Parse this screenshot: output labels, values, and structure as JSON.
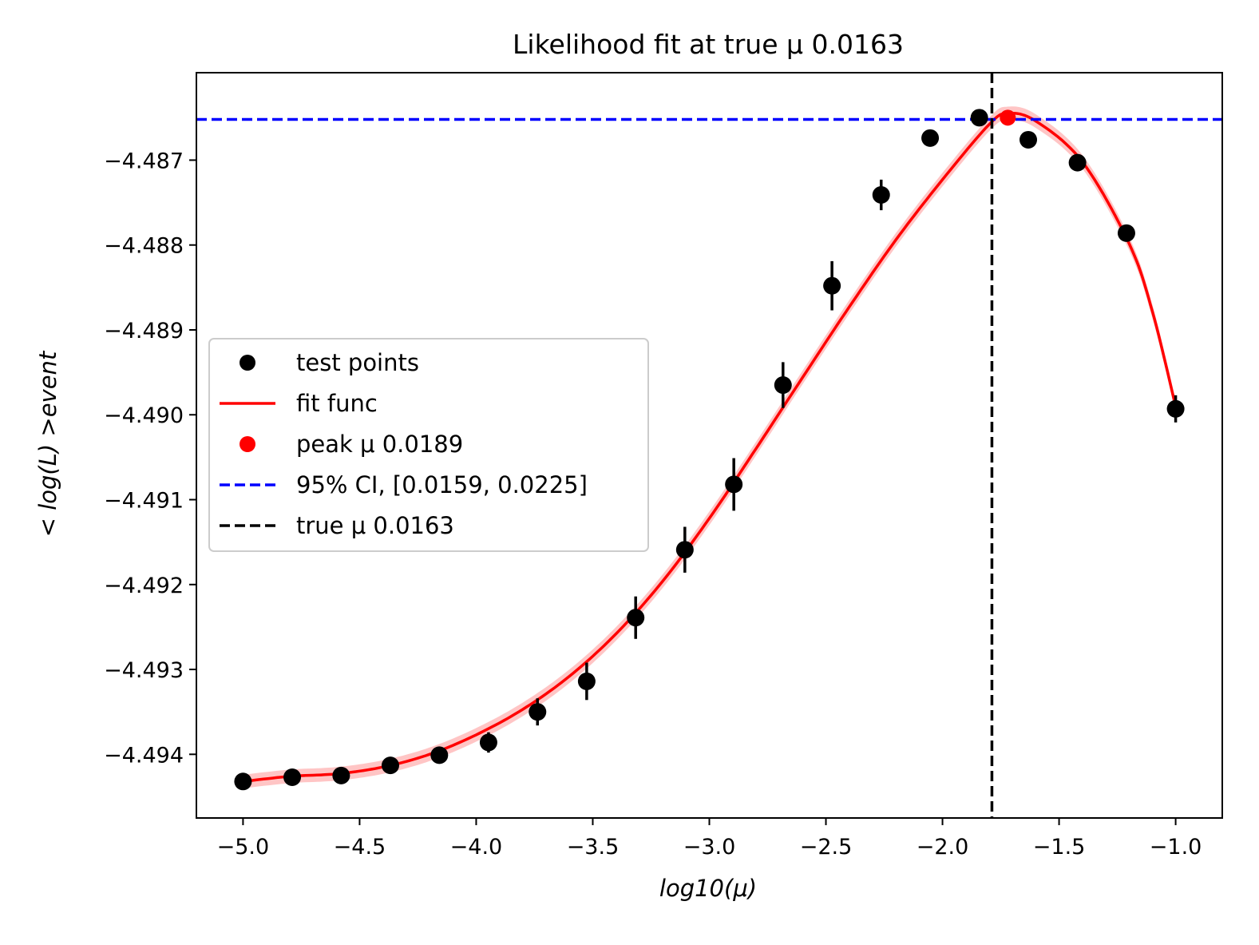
{
  "chart_data": {
    "type": "scatter",
    "title": "Likelihood fit at true μ 0.0163",
    "xlabel": "log10(μ)",
    "ylabel": "< log(L) >event",
    "xlim": [
      -5.2,
      -0.8
    ],
    "ylim": [
      -4.49475,
      -4.48597
    ],
    "xticks": [
      -5.0,
      -4.5,
      -4.0,
      -3.5,
      -3.0,
      -2.5,
      -2.0,
      -1.5,
      -1.0
    ],
    "xtick_labels": [
      "−5.0",
      "−4.5",
      "−4.0",
      "−3.5",
      "−3.0",
      "−2.5",
      "−2.0",
      "−1.5",
      "−1.0"
    ],
    "yticks": [
      -4.494,
      -4.493,
      -4.492,
      -4.491,
      -4.49,
      -4.489,
      -4.488,
      -4.487
    ],
    "ytick_labels": [
      "−4.494",
      "−4.493",
      "−4.492",
      "−4.491",
      "−4.490",
      "−4.489",
      "−4.488",
      "−4.487"
    ],
    "test_points": {
      "x": [
        -5.0,
        -4.789,
        -4.579,
        -4.368,
        -4.158,
        -3.947,
        -3.737,
        -3.526,
        -3.316,
        -3.105,
        -2.895,
        -2.684,
        -2.474,
        -2.263,
        -2.053,
        -1.842,
        -1.632,
        -1.421,
        -1.211,
        -1.0
      ],
      "y": [
        -4.49432,
        -4.49427,
        -4.49425,
        -4.49413,
        -4.49401,
        -4.49386,
        -4.4935,
        -4.49314,
        -4.49239,
        -4.49159,
        -4.49082,
        -4.48965,
        -4.48848,
        -4.48741,
        -4.48674,
        -4.4865,
        -4.48676,
        -4.48703,
        -4.48786,
        -4.48993
      ],
      "yerr": [
        3e-05,
        3e-05,
        4e-05,
        4e-05,
        5e-05,
        0.00012,
        0.00016,
        0.00022,
        0.00025,
        0.00027,
        0.00031,
        0.00027,
        0.00029,
        0.00018,
        9e-05,
        6e-05,
        4e-05,
        4e-05,
        0.0001,
        0.00016
      ]
    },
    "fit_func": {
      "x": [
        -5.0,
        -4.8,
        -4.6,
        -4.4,
        -4.2,
        -4.0,
        -3.8,
        -3.6,
        -3.4,
        -3.2,
        -3.0,
        -2.8,
        -2.6,
        -2.4,
        -2.2,
        -2.0,
        -1.8,
        -1.72,
        -1.6,
        -1.4,
        -1.2,
        -1.1,
        -1.0
      ],
      "y": [
        -4.49432,
        -4.49426,
        -4.49423,
        -4.49415,
        -4.494,
        -4.49377,
        -4.49347,
        -4.49308,
        -4.49258,
        -4.49196,
        -4.49122,
        -4.4904,
        -4.48956,
        -4.48873,
        -4.48794,
        -4.48723,
        -4.48658,
        -4.48645,
        -4.48654,
        -4.48702,
        -4.48798,
        -4.48878,
        -4.4899
      ],
      "band_halfwidth": 8e-05
    },
    "peak": {
      "x": -1.72,
      "y": -4.4865
    },
    "ci_line_y": -4.48652,
    "true_line_x": -1.788,
    "colors": {
      "points": "#000000",
      "fit": "#ff0000",
      "band": "#ff9f9f",
      "peak": "#ff0000",
      "ci": "#0000ff",
      "true": "#000000"
    },
    "legend": {
      "location": "center-left",
      "entries": [
        {
          "label": "test points",
          "kind": "marker",
          "color": "#000000"
        },
        {
          "label": "fit func",
          "kind": "line",
          "color": "#ff0000"
        },
        {
          "label": "peak μ 0.0189",
          "kind": "marker",
          "color": "#ff0000"
        },
        {
          "label": "95% CI, [0.0159, 0.0225]",
          "kind": "dashed",
          "color": "#0000ff"
        },
        {
          "label": "true μ 0.0163",
          "kind": "dashed",
          "color": "#000000"
        }
      ]
    }
  }
}
